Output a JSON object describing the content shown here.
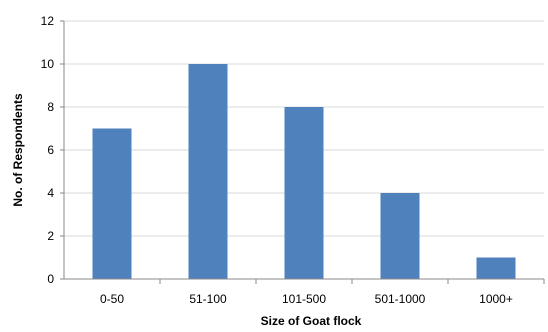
{
  "chart_data": {
    "type": "bar",
    "categories": [
      "0-50",
      "51-100",
      "101-500",
      "501-1000",
      "1000+"
    ],
    "values": [
      7,
      10,
      8,
      4,
      1
    ],
    "xlabel": "Size of Goat flock",
    "ylabel": "No. of Respondents",
    "ylim": [
      0,
      12
    ],
    "yticks": [
      0,
      2,
      4,
      6,
      8,
      10,
      12
    ],
    "grid": true,
    "bar_color": "#4f81bd"
  }
}
